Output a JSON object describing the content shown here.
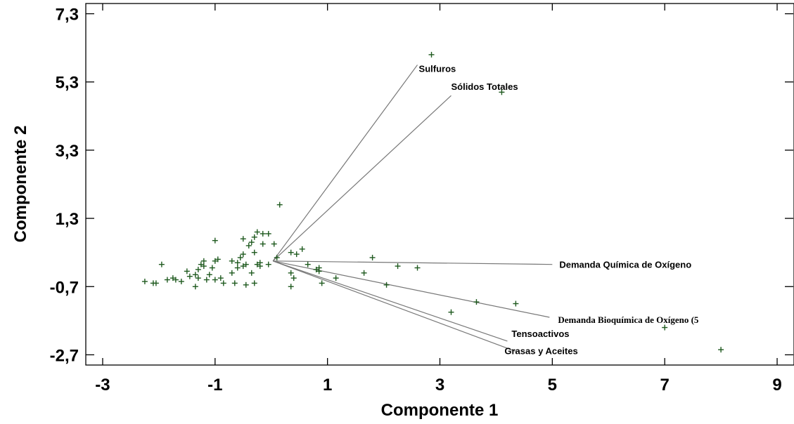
{
  "chart_data": {
    "type": "scatter",
    "subtype": "biplot",
    "xlabel": "Componente 1",
    "ylabel": "Componente 2",
    "xlim": [
      -3.3,
      9.3
    ],
    "ylim": [
      -3.0,
      7.6
    ],
    "x_ticks": [
      -3,
      -1,
      1,
      3,
      5,
      7,
      9
    ],
    "y_ticks": [
      -2.7,
      -0.7,
      1.3,
      3.3,
      5.3,
      7.3
    ],
    "x_tick_labels": [
      "-3",
      "-1",
      "1",
      "3",
      "5",
      "7",
      "9"
    ],
    "y_tick_labels": [
      "-2,7",
      "-0,7",
      "1,3",
      "3,3",
      "5,3",
      "7,3"
    ],
    "grid": false,
    "point_color": "#1f5a1f",
    "vector_color": "#777777",
    "origin": [
      0.03,
      0.05
    ],
    "vectors": [
      {
        "name": "Sulfuros",
        "x": 2.6,
        "y": 5.8
      },
      {
        "name": "Sólidos Totales",
        "x": 3.2,
        "y": 4.9
      },
      {
        "name": "Demanda Química de Oxígeno",
        "x": 5.0,
        "y": -0.05
      },
      {
        "name": "Demanda Bioquímica de Oxígeno (5",
        "x": 4.95,
        "y": -1.6
      },
      {
        "name": "Tensoactivos",
        "x": 4.2,
        "y": -2.3
      },
      {
        "name": "Grasas y Aceites",
        "x": 4.35,
        "y": -2.6
      }
    ],
    "points": [
      [
        2.85,
        6.1
      ],
      [
        4.1,
        5.0
      ],
      [
        0.15,
        1.7
      ],
      [
        1.8,
        0.15
      ],
      [
        0.55,
        0.4
      ],
      [
        0.35,
        0.3
      ],
      [
        0.45,
        0.25
      ],
      [
        -0.25,
        0.9
      ],
      [
        -0.15,
        0.85
      ],
      [
        -0.05,
        0.85
      ],
      [
        -0.3,
        0.75
      ],
      [
        -0.5,
        0.7
      ],
      [
        -0.35,
        0.6
      ],
      [
        -0.15,
        0.55
      ],
      [
        -0.4,
        0.5
      ],
      [
        -0.3,
        0.3
      ],
      [
        -0.5,
        0.25
      ],
      [
        -0.55,
        0.15
      ],
      [
        -0.6,
        0.0
      ],
      [
        -0.2,
        0.0
      ],
      [
        -0.25,
        -0.05
      ],
      [
        -0.45,
        -0.05
      ],
      [
        -0.5,
        -0.1
      ],
      [
        -0.7,
        0.05
      ],
      [
        -0.6,
        -0.15
      ],
      [
        -0.7,
        -0.3
      ],
      [
        -0.65,
        -0.6
      ],
      [
        -0.45,
        -0.65
      ],
      [
        -0.3,
        -0.6
      ],
      [
        -0.35,
        -0.3
      ],
      [
        -0.2,
        -0.1
      ],
      [
        -0.05,
        -0.05
      ],
      [
        0.1,
        0.15
      ],
      [
        0.05,
        0.55
      ],
      [
        -1.0,
        0.65
      ],
      [
        -0.95,
        0.1
      ],
      [
        -1.0,
        0.05
      ],
      [
        -1.2,
        0.05
      ],
      [
        -1.25,
        -0.05
      ],
      [
        -1.2,
        -0.1
      ],
      [
        -1.3,
        -0.2
      ],
      [
        -1.35,
        -0.35
      ],
      [
        -1.05,
        -0.15
      ],
      [
        -1.1,
        -0.35
      ],
      [
        -1.5,
        -0.25
      ],
      [
        -1.45,
        -0.4
      ],
      [
        -1.3,
        -0.45
      ],
      [
        -1.15,
        -0.5
      ],
      [
        -1.0,
        -0.5
      ],
      [
        -0.9,
        -0.45
      ],
      [
        -0.85,
        -0.6
      ],
      [
        -1.35,
        -0.7
      ],
      [
        -1.6,
        -0.55
      ],
      [
        -1.7,
        -0.5
      ],
      [
        -1.75,
        -0.45
      ],
      [
        -1.85,
        -0.5
      ],
      [
        -2.25,
        -0.55
      ],
      [
        -2.05,
        -0.6
      ],
      [
        -2.1,
        -0.6
      ],
      [
        -1.95,
        -0.05
      ],
      [
        0.65,
        -0.05
      ],
      [
        0.35,
        -0.3
      ],
      [
        0.85,
        -0.25
      ],
      [
        0.8,
        -0.2
      ],
      [
        0.35,
        -0.7
      ],
      [
        1.15,
        -0.45
      ],
      [
        0.9,
        -0.6
      ],
      [
        1.65,
        -0.3
      ],
      [
        2.05,
        -0.65
      ],
      [
        2.25,
        -0.1
      ],
      [
        2.6,
        -0.15
      ],
      [
        3.2,
        -1.45
      ],
      [
        3.65,
        -1.15
      ],
      [
        4.35,
        -1.2
      ],
      [
        7.0,
        -1.9
      ],
      [
        8.0,
        -2.55
      ],
      [
        0.85,
        -0.15
      ],
      [
        0.4,
        -0.45
      ]
    ]
  }
}
